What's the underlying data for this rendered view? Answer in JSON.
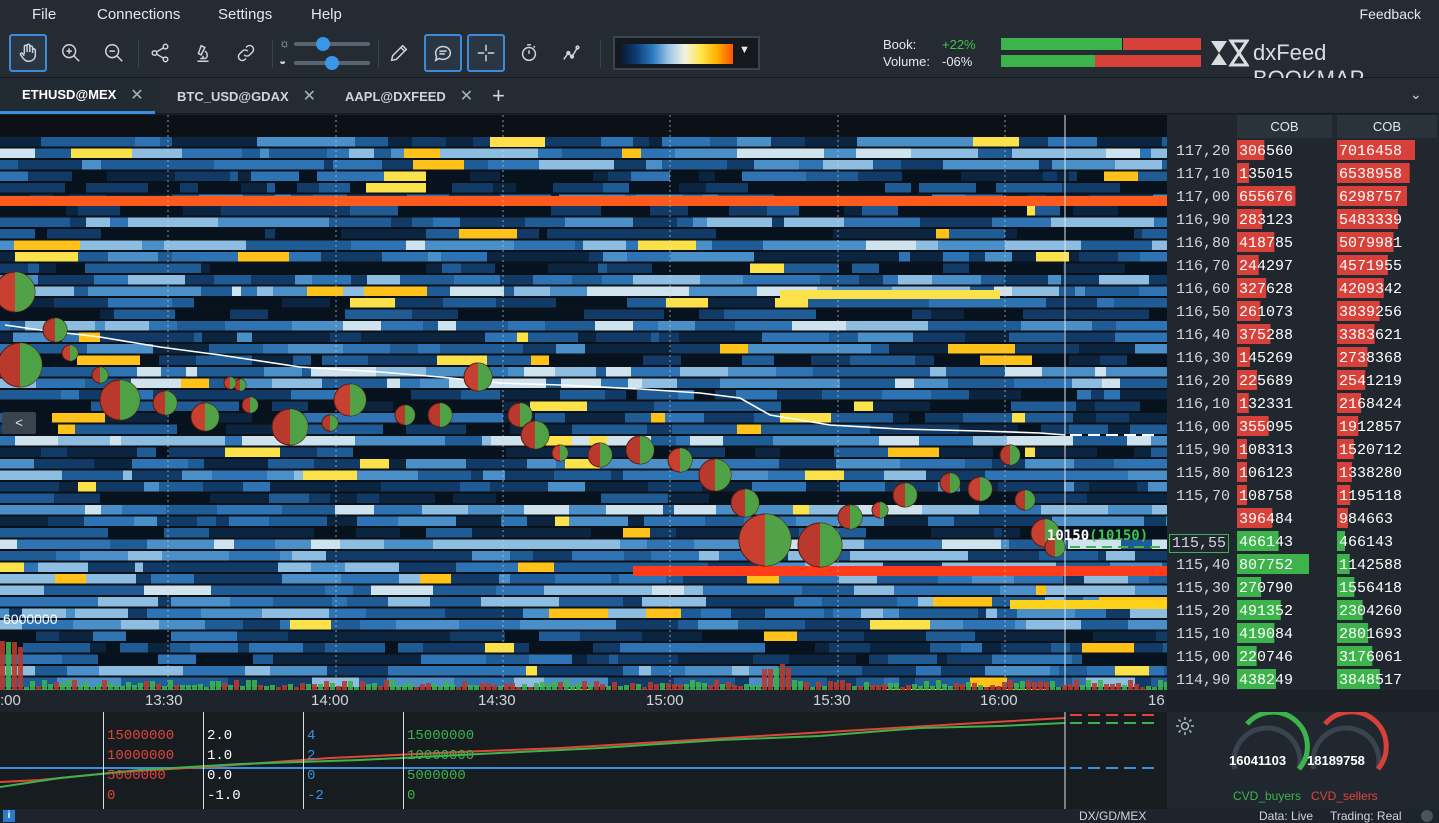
{
  "menu": {
    "items": [
      "File",
      "Connections",
      "Settings",
      "Help"
    ],
    "feedback": "Feedback"
  },
  "toolbar": {
    "icons": [
      "hand-icon",
      "zoom-in-icon",
      "zoom-out-icon",
      "share-icon",
      "microscope-icon",
      "link-icon",
      "brightness-icon",
      "contrast-icon",
      "pencil-icon",
      "chat-icon",
      "crosshair-icon",
      "stopwatch-icon",
      "strategy-icon"
    ],
    "brightness_level": 0.35,
    "contrast_level": 0.5,
    "book_label": "Book:",
    "book_value": "+22%",
    "volume_label": "Volume:",
    "volume_value": "-06%",
    "logo": "dxFeed BOOKMAP"
  },
  "tabs": [
    {
      "label": "ETHUSD@MEX",
      "active": true
    },
    {
      "label": "BTC_USD@GDAX",
      "active": false
    },
    {
      "label": "AAPL@DXFEED",
      "active": false
    }
  ],
  "chart": {
    "last_trade": "10150",
    "last_trade_paren": "(10150)",
    "volume_scale_label": "6000000",
    "collapse_button": "<",
    "current_price": "115,55",
    "x_ticks": [
      ":00",
      "13:30",
      "14:00",
      "14:30",
      "15:00",
      "15:30",
      "16:00",
      "16"
    ]
  },
  "dom": {
    "headers": [
      "COB",
      "COB"
    ],
    "rows": [
      {
        "price": "117,20",
        "cob1": "306560",
        "cob2": "7016458"
      },
      {
        "price": "117,10",
        "cob1": "135015",
        "cob2": "6538958"
      },
      {
        "price": "117,00",
        "cob1": "655676",
        "cob2": "6298757"
      },
      {
        "price": "116,90",
        "cob1": "283123",
        "cob2": "5483339"
      },
      {
        "price": "116,80",
        "cob1": "418785",
        "cob2": "5079981"
      },
      {
        "price": "116,70",
        "cob1": "244297",
        "cob2": "4571955"
      },
      {
        "price": "116,60",
        "cob1": "327628",
        "cob2": "4209342"
      },
      {
        "price": "116,50",
        "cob1": "261073",
        "cob2": "3839256"
      },
      {
        "price": "116,40",
        "cob1": "375288",
        "cob2": "3383621"
      },
      {
        "price": "116,30",
        "cob1": "145269",
        "cob2": "2738368"
      },
      {
        "price": "116,20",
        "cob1": "225689",
        "cob2": "2541219"
      },
      {
        "price": "116,10",
        "cob1": "132331",
        "cob2": "2168424"
      },
      {
        "price": "116,00",
        "cob1": "355095",
        "cob2": "1912857"
      },
      {
        "price": "115,90",
        "cob1": "108313",
        "cob2": "1520712"
      },
      {
        "price": "115,80",
        "cob1": "106123",
        "cob2": "1338280"
      },
      {
        "price": "115,70",
        "cob1": "108758",
        "cob2": "1195118"
      },
      {
        "price": "",
        "cob1": "396484",
        "cob2": "984663"
      },
      {
        "price": "115,55",
        "cob1": "466143",
        "cob2": "466143"
      },
      {
        "price": "115,40",
        "cob1": "807752",
        "cob2": "1142588"
      },
      {
        "price": "115,30",
        "cob1": "270790",
        "cob2": "1556418"
      },
      {
        "price": "115,20",
        "cob1": "491352",
        "cob2": "2304260"
      },
      {
        "price": "115,10",
        "cob1": "419084",
        "cob2": "2801693"
      },
      {
        "price": "115,00",
        "cob1": "220746",
        "cob2": "3176061"
      },
      {
        "price": "114,90",
        "cob1": "438249",
        "cob2": "3848517"
      }
    ]
  },
  "bottom": {
    "col1": [
      "15000000",
      "10000000",
      "5000000",
      "0"
    ],
    "col2": [
      "2.0",
      "1.0",
      "0.0",
      "-1.0"
    ],
    "col3": [
      "4",
      "2",
      "0",
      "-2"
    ],
    "col4": [
      "15000000",
      "10000000",
      "5000000",
      "0"
    ]
  },
  "cvd": {
    "buyers_value": "16041103",
    "sellers_value": "18189758",
    "buyers_label": "CVD_buyers",
    "sellers_label": "CVD_sellers"
  },
  "status": {
    "source": "DX/GD/MEX",
    "data": "Data: Live",
    "trading": "Trading: Real"
  },
  "colors": {
    "accent": "#3a8fe0",
    "buy": "#3cb44b",
    "sell": "#e0453a",
    "heat_hot": "#ff5a1e"
  }
}
